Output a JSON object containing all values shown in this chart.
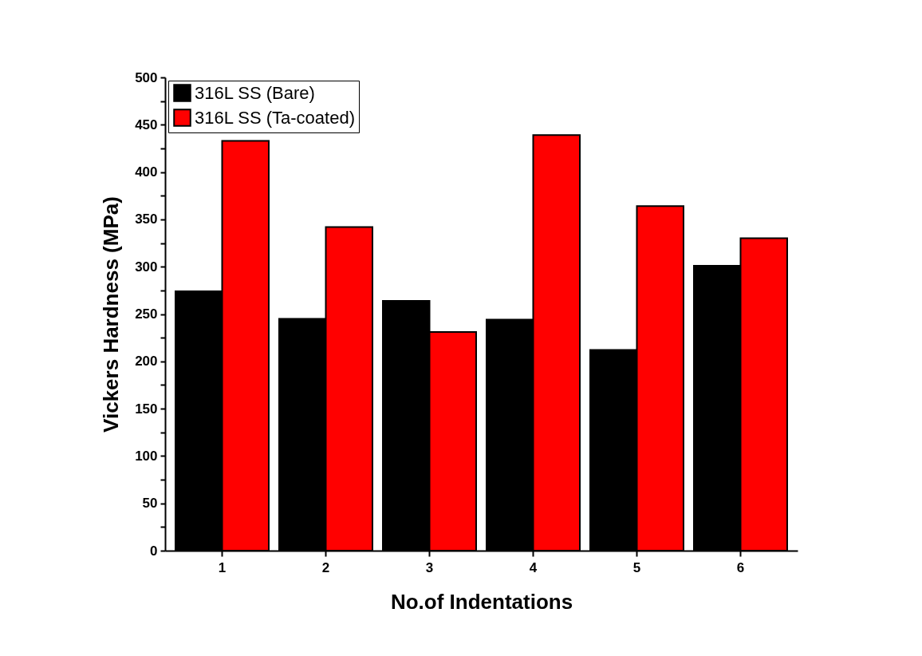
{
  "chart_data": {
    "type": "bar",
    "xlabel": "No.of Indentations",
    "ylabel": "Vickers Hardness (MPa)",
    "categories": [
      "1",
      "2",
      "3",
      "4",
      "5",
      "6"
    ],
    "series": [
      {
        "name": "316L SS (Bare)",
        "color": "#000000",
        "values": [
          274,
          245,
          264,
          244,
          212,
          301
        ]
      },
      {
        "name": "316L SS (Ta-coated)",
        "color": "#ff0000",
        "values": [
          433,
          342,
          231,
          439,
          364,
          330
        ]
      }
    ],
    "ylim": [
      0,
      500
    ],
    "yticks": [
      0,
      {
        "value": 25,
        "label": null
      },
      50,
      {
        "value": 75,
        "label": null
      },
      100,
      {
        "value": 125,
        "label": null
      },
      150,
      {
        "value": 175,
        "label": null
      },
      200,
      {
        "value": 225,
        "label": null
      },
      250,
      {
        "value": 275,
        "label": null
      },
      300,
      {
        "value": 325,
        "label": null
      },
      350,
      {
        "value": 375,
        "label": null
      },
      400,
      {
        "value": 425,
        "label": null
      },
      450,
      {
        "value": 475,
        "label": null
      },
      500
    ],
    "grid": false,
    "legend": "top left"
  }
}
